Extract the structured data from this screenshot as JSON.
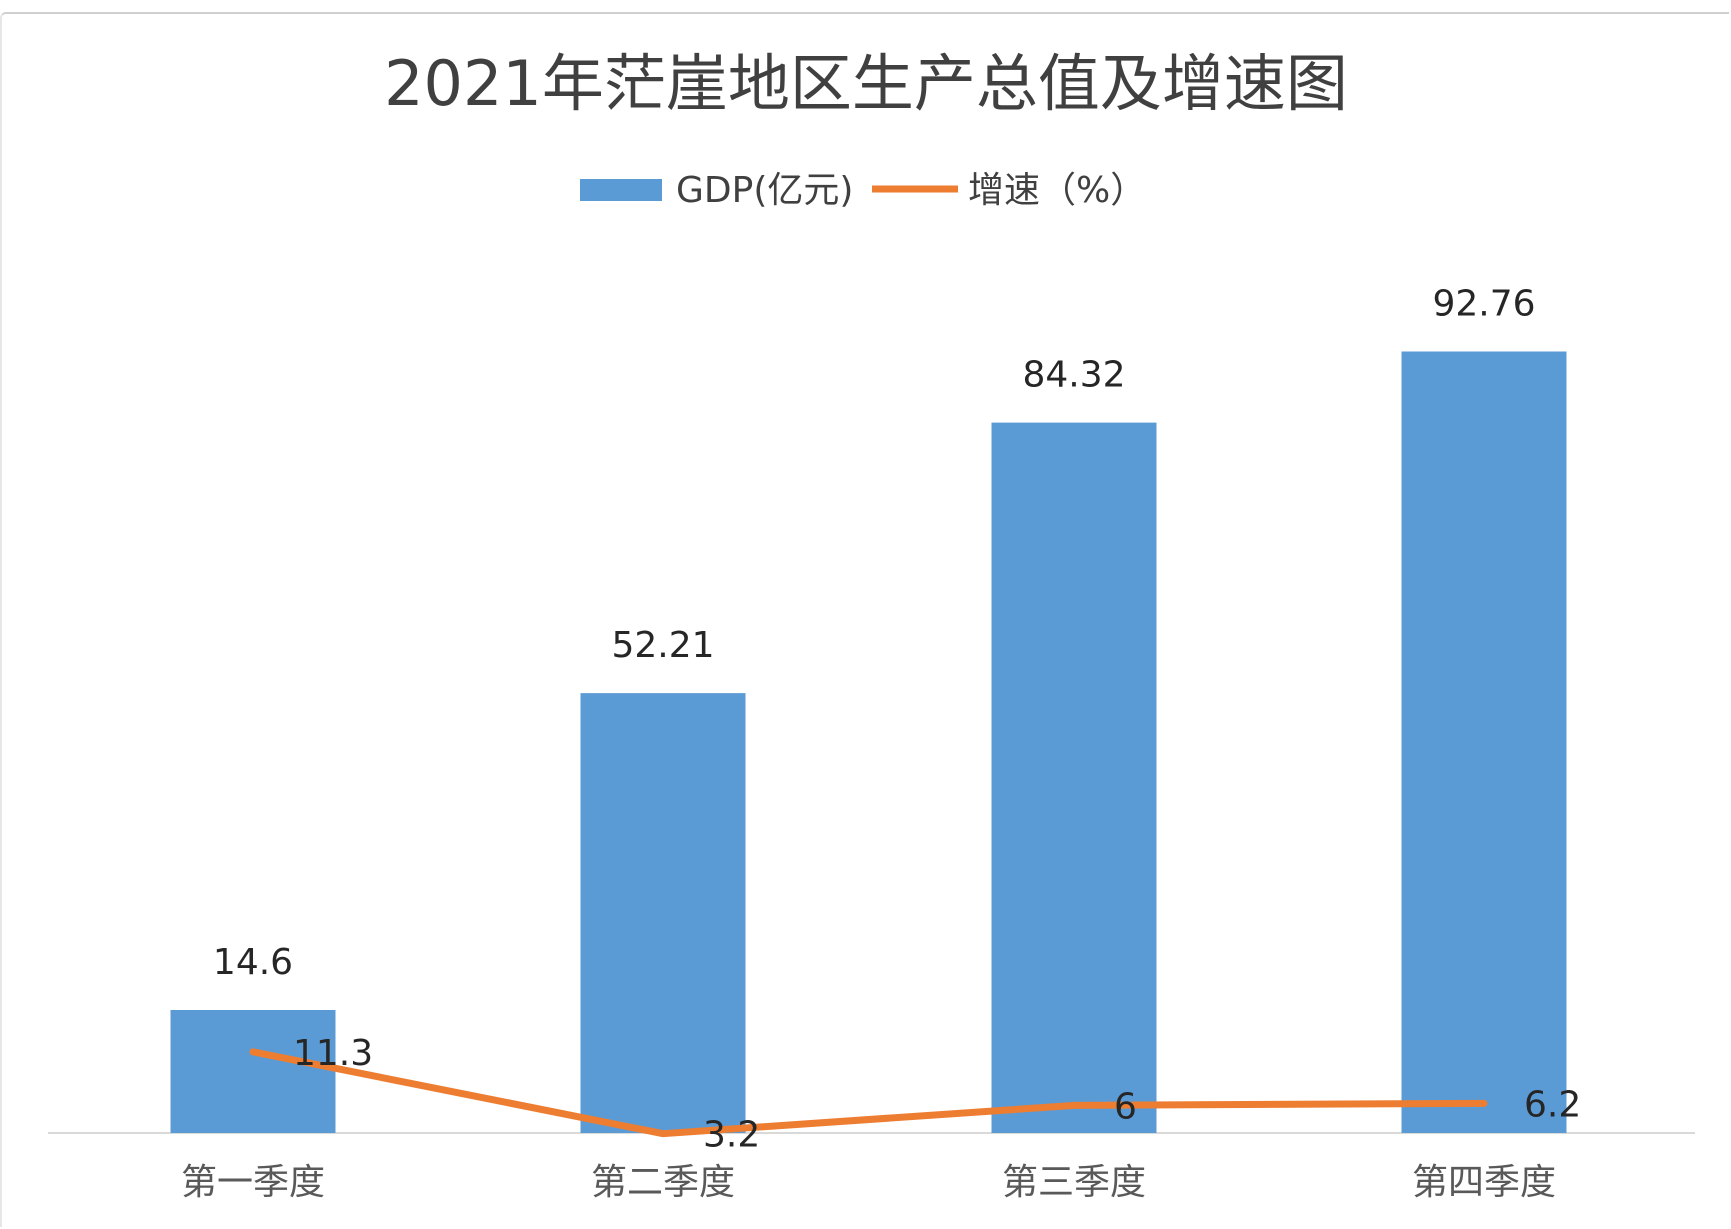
{
  "chart_data": {
    "type": "bar",
    "title": "2021年茫崖地区生产总值及增速图",
    "categories": [
      "第一季度",
      "第二季度",
      "第三季度",
      "第四季度"
    ],
    "series": [
      {
        "name": "GDP(亿元)",
        "type": "bar",
        "values": [
          14.6,
          52.21,
          84.32,
          92.76
        ],
        "labels": [
          "14.6",
          "52.21",
          "84.32",
          "92.76"
        ],
        "color": "#5b9bd5"
      },
      {
        "name": "增速（%）",
        "type": "line",
        "values": [
          11.3,
          3.2,
          6,
          6.2
        ],
        "labels": [
          "11.3",
          "3.2",
          "6",
          "6.2"
        ],
        "color": "#ed7d31"
      }
    ],
    "ylim": [
      0,
      100
    ],
    "grid": false,
    "legend": "top"
  }
}
